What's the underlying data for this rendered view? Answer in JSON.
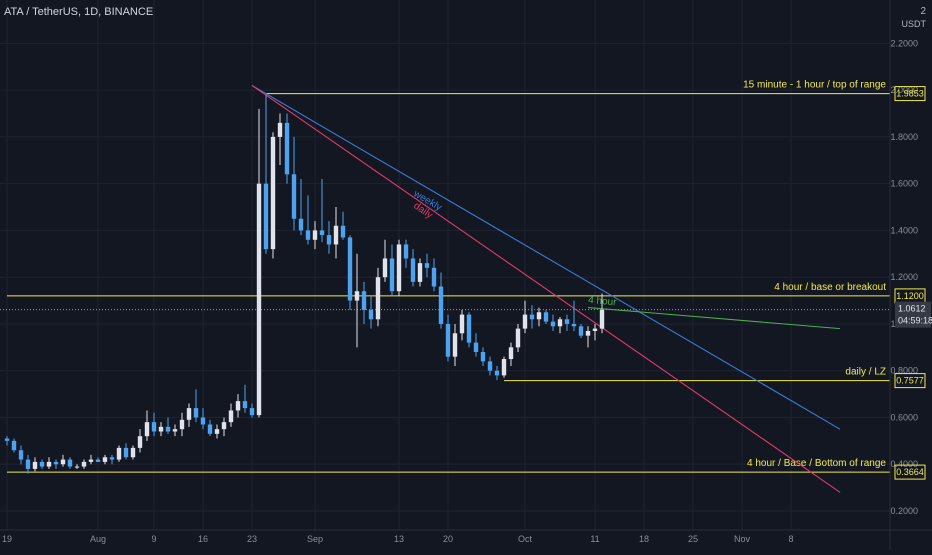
{
  "header": {
    "symbol": "ATA / TetherUS, 1D, BINANCE",
    "currency_top": "2",
    "currency_unit": "USDT"
  },
  "colors": {
    "background": "#131722",
    "grid": "#1f2330",
    "up": "#e0e3eb",
    "down": "#4da3f0",
    "level": "#f2e94e",
    "weekly": "#3a7bd5",
    "daily": "#e0386a",
    "four_hour": "#4caf50",
    "price_label_bg": "#363a45"
  },
  "chart_data": {
    "type": "candlestick",
    "ylim": [
      0.2,
      2.3
    ],
    "yticks": [
      {
        "value": 2.2,
        "label": "2.2000"
      },
      {
        "value": 2.0,
        "label": "2.0000"
      },
      {
        "value": 1.8,
        "label": "1.8000"
      },
      {
        "value": 1.6,
        "label": "1.6000"
      },
      {
        "value": 1.4,
        "label": "1.4000"
      },
      {
        "value": 1.2,
        "label": "1.2000"
      },
      {
        "value": 1.0,
        "label": "1.0000"
      },
      {
        "value": 0.8,
        "label": "0.8000"
      },
      {
        "value": 0.6,
        "label": "0.6000"
      },
      {
        "value": 0.4,
        "label": "0.4000"
      },
      {
        "value": 0.2,
        "label": "0.2000"
      }
    ],
    "xticks": [
      {
        "day": 0,
        "label": "19"
      },
      {
        "day": 13,
        "label": "Aug"
      },
      {
        "day": 21,
        "label": "9"
      },
      {
        "day": 28,
        "label": "16"
      },
      {
        "day": 35,
        "label": "23"
      },
      {
        "day": 44,
        "label": "Sep"
      },
      {
        "day": 56,
        "label": "13"
      },
      {
        "day": 63,
        "label": "20"
      },
      {
        "day": 74,
        "label": "Oct"
      },
      {
        "day": 84,
        "label": "11"
      },
      {
        "day": 91,
        "label": "18"
      },
      {
        "day": 98,
        "label": "25"
      },
      {
        "day": 105,
        "label": "Nov"
      },
      {
        "day": 112,
        "label": "8"
      }
    ],
    "candles": [
      [
        0.51,
        0.52,
        0.48,
        0.5
      ],
      [
        0.5,
        0.51,
        0.45,
        0.46
      ],
      [
        0.46,
        0.48,
        0.4,
        0.42
      ],
      [
        0.42,
        0.44,
        0.36,
        0.38
      ],
      [
        0.38,
        0.43,
        0.37,
        0.41
      ],
      [
        0.41,
        0.42,
        0.38,
        0.39
      ],
      [
        0.39,
        0.43,
        0.38,
        0.41
      ],
      [
        0.41,
        0.42,
        0.38,
        0.4
      ],
      [
        0.4,
        0.44,
        0.39,
        0.42
      ],
      [
        0.42,
        0.43,
        0.38,
        0.39
      ],
      [
        0.39,
        0.4,
        0.38,
        0.39
      ],
      [
        0.39,
        0.42,
        0.38,
        0.41
      ],
      [
        0.41,
        0.44,
        0.4,
        0.42
      ],
      [
        0.42,
        0.43,
        0.41,
        0.41
      ],
      [
        0.41,
        0.44,
        0.4,
        0.43
      ],
      [
        0.43,
        0.44,
        0.4,
        0.42
      ],
      [
        0.42,
        0.48,
        0.41,
        0.47
      ],
      [
        0.47,
        0.49,
        0.42,
        0.43
      ],
      [
        0.43,
        0.48,
        0.42,
        0.47
      ],
      [
        0.47,
        0.55,
        0.45,
        0.52
      ],
      [
        0.52,
        0.63,
        0.5,
        0.58
      ],
      [
        0.58,
        0.62,
        0.52,
        0.54
      ],
      [
        0.54,
        0.58,
        0.52,
        0.56
      ],
      [
        0.56,
        0.6,
        0.53,
        0.54
      ],
      [
        0.54,
        0.57,
        0.52,
        0.55
      ],
      [
        0.55,
        0.62,
        0.52,
        0.59
      ],
      [
        0.59,
        0.66,
        0.56,
        0.64
      ],
      [
        0.64,
        0.72,
        0.58,
        0.6
      ],
      [
        0.6,
        0.64,
        0.55,
        0.57
      ],
      [
        0.57,
        0.59,
        0.52,
        0.53
      ],
      [
        0.53,
        0.57,
        0.51,
        0.55
      ],
      [
        0.55,
        0.6,
        0.52,
        0.58
      ],
      [
        0.58,
        0.66,
        0.56,
        0.63
      ],
      [
        0.63,
        0.7,
        0.6,
        0.67
      ],
      [
        0.67,
        0.74,
        0.62,
        0.64
      ],
      [
        0.64,
        0.66,
        0.6,
        0.61
      ],
      [
        0.61,
        1.92,
        0.6,
        1.6
      ],
      [
        1.6,
        1.98,
        1.3,
        1.32
      ],
      [
        1.32,
        1.82,
        1.28,
        1.8
      ],
      [
        1.8,
        1.9,
        1.68,
        1.86
      ],
      [
        1.86,
        1.9,
        1.6,
        1.64
      ],
      [
        1.64,
        1.8,
        1.4,
        1.45
      ],
      [
        1.45,
        1.62,
        1.38,
        1.4
      ],
      [
        1.4,
        1.55,
        1.34,
        1.36
      ],
      [
        1.36,
        1.44,
        1.32,
        1.4
      ],
      [
        1.4,
        1.62,
        1.35,
        1.38
      ],
      [
        1.38,
        1.44,
        1.3,
        1.34
      ],
      [
        1.34,
        1.5,
        1.28,
        1.42
      ],
      [
        1.42,
        1.48,
        1.36,
        1.37
      ],
      [
        1.37,
        1.38,
        1.06,
        1.1
      ],
      [
        1.1,
        1.3,
        0.9,
        1.14
      ],
      [
        1.14,
        1.18,
        1.0,
        1.06
      ],
      [
        1.06,
        1.12,
        0.98,
        1.02
      ],
      [
        1.02,
        1.24,
        0.99,
        1.2
      ],
      [
        1.2,
        1.36,
        1.18,
        1.28
      ],
      [
        1.28,
        1.34,
        1.12,
        1.14
      ],
      [
        1.14,
        1.36,
        1.12,
        1.34
      ],
      [
        1.34,
        1.36,
        1.24,
        1.28
      ],
      [
        1.28,
        1.32,
        1.16,
        1.18
      ],
      [
        1.18,
        1.28,
        1.16,
        1.26
      ],
      [
        1.26,
        1.3,
        1.2,
        1.24
      ],
      [
        1.24,
        1.28,
        1.14,
        1.16
      ],
      [
        1.16,
        1.22,
        0.98,
        1.0
      ],
      [
        1.0,
        1.04,
        0.84,
        0.86
      ],
      [
        0.86,
        1.0,
        0.82,
        0.96
      ],
      [
        0.96,
        1.06,
        0.93,
        1.04
      ],
      [
        1.04,
        1.05,
        0.9,
        0.92
      ],
      [
        0.92,
        0.96,
        0.86,
        0.88
      ],
      [
        0.88,
        0.9,
        0.82,
        0.84
      ],
      [
        0.84,
        0.86,
        0.78,
        0.8
      ],
      [
        0.8,
        0.82,
        0.76,
        0.78
      ],
      [
        0.78,
        0.86,
        0.77,
        0.85
      ],
      [
        0.85,
        0.92,
        0.82,
        0.9
      ],
      [
        0.9,
        1.0,
        0.88,
        0.98
      ],
      [
        0.98,
        1.1,
        0.96,
        1.04
      ],
      [
        1.04,
        1.08,
        0.98,
        1.02
      ],
      [
        1.02,
        1.07,
        0.99,
        1.05
      ],
      [
        1.05,
        1.06,
        1.0,
        1.01
      ],
      [
        1.01,
        1.04,
        0.97,
        0.99
      ],
      [
        0.99,
        1.03,
        0.96,
        1.02
      ],
      [
        1.02,
        1.04,
        0.97,
        1.0
      ],
      [
        1.0,
        1.1,
        0.97,
        0.99
      ],
      [
        0.99,
        1.0,
        0.94,
        0.95
      ],
      [
        0.95,
        0.99,
        0.9,
        0.97
      ],
      [
        0.97,
        1.0,
        0.93,
        0.98
      ],
      [
        0.98,
        1.13,
        0.96,
        1.06
      ]
    ],
    "levels": [
      {
        "value": 1.9853,
        "label": "15 minute - 1 hour / top of range",
        "price_tag": "1.9853",
        "from_day": 37
      },
      {
        "value": 1.12,
        "label": "4 hour / base or breakout",
        "price_tag": "1.1200",
        "from_day": 0
      },
      {
        "value": 0.7577,
        "label": "daily / LZ",
        "price_tag": "0.7577",
        "from_day": 71
      },
      {
        "value": 0.3664,
        "label": "4 hour / Base / Bottom of range",
        "price_tag": "0.3664",
        "from_day": 0
      }
    ],
    "trendlines": [
      {
        "name": "weekly",
        "x1": 35,
        "y1": 2.02,
        "x2": 119,
        "y2": 0.55,
        "label_day": 58,
        "label_value": 1.55
      },
      {
        "name": "daily",
        "x1": 35,
        "y1": 2.02,
        "x2": 119,
        "y2": 0.28,
        "label_day": 58,
        "label_value": 1.5
      },
      {
        "name": "4 hour",
        "x1": 83,
        "y1": 1.07,
        "x2": 119,
        "y2": 0.98,
        "label_day": 83,
        "label_value": 1.09
      }
    ],
    "last_price": {
      "value": 1.0612,
      "label": "1.0612",
      "countdown": "04:59:18"
    }
  }
}
